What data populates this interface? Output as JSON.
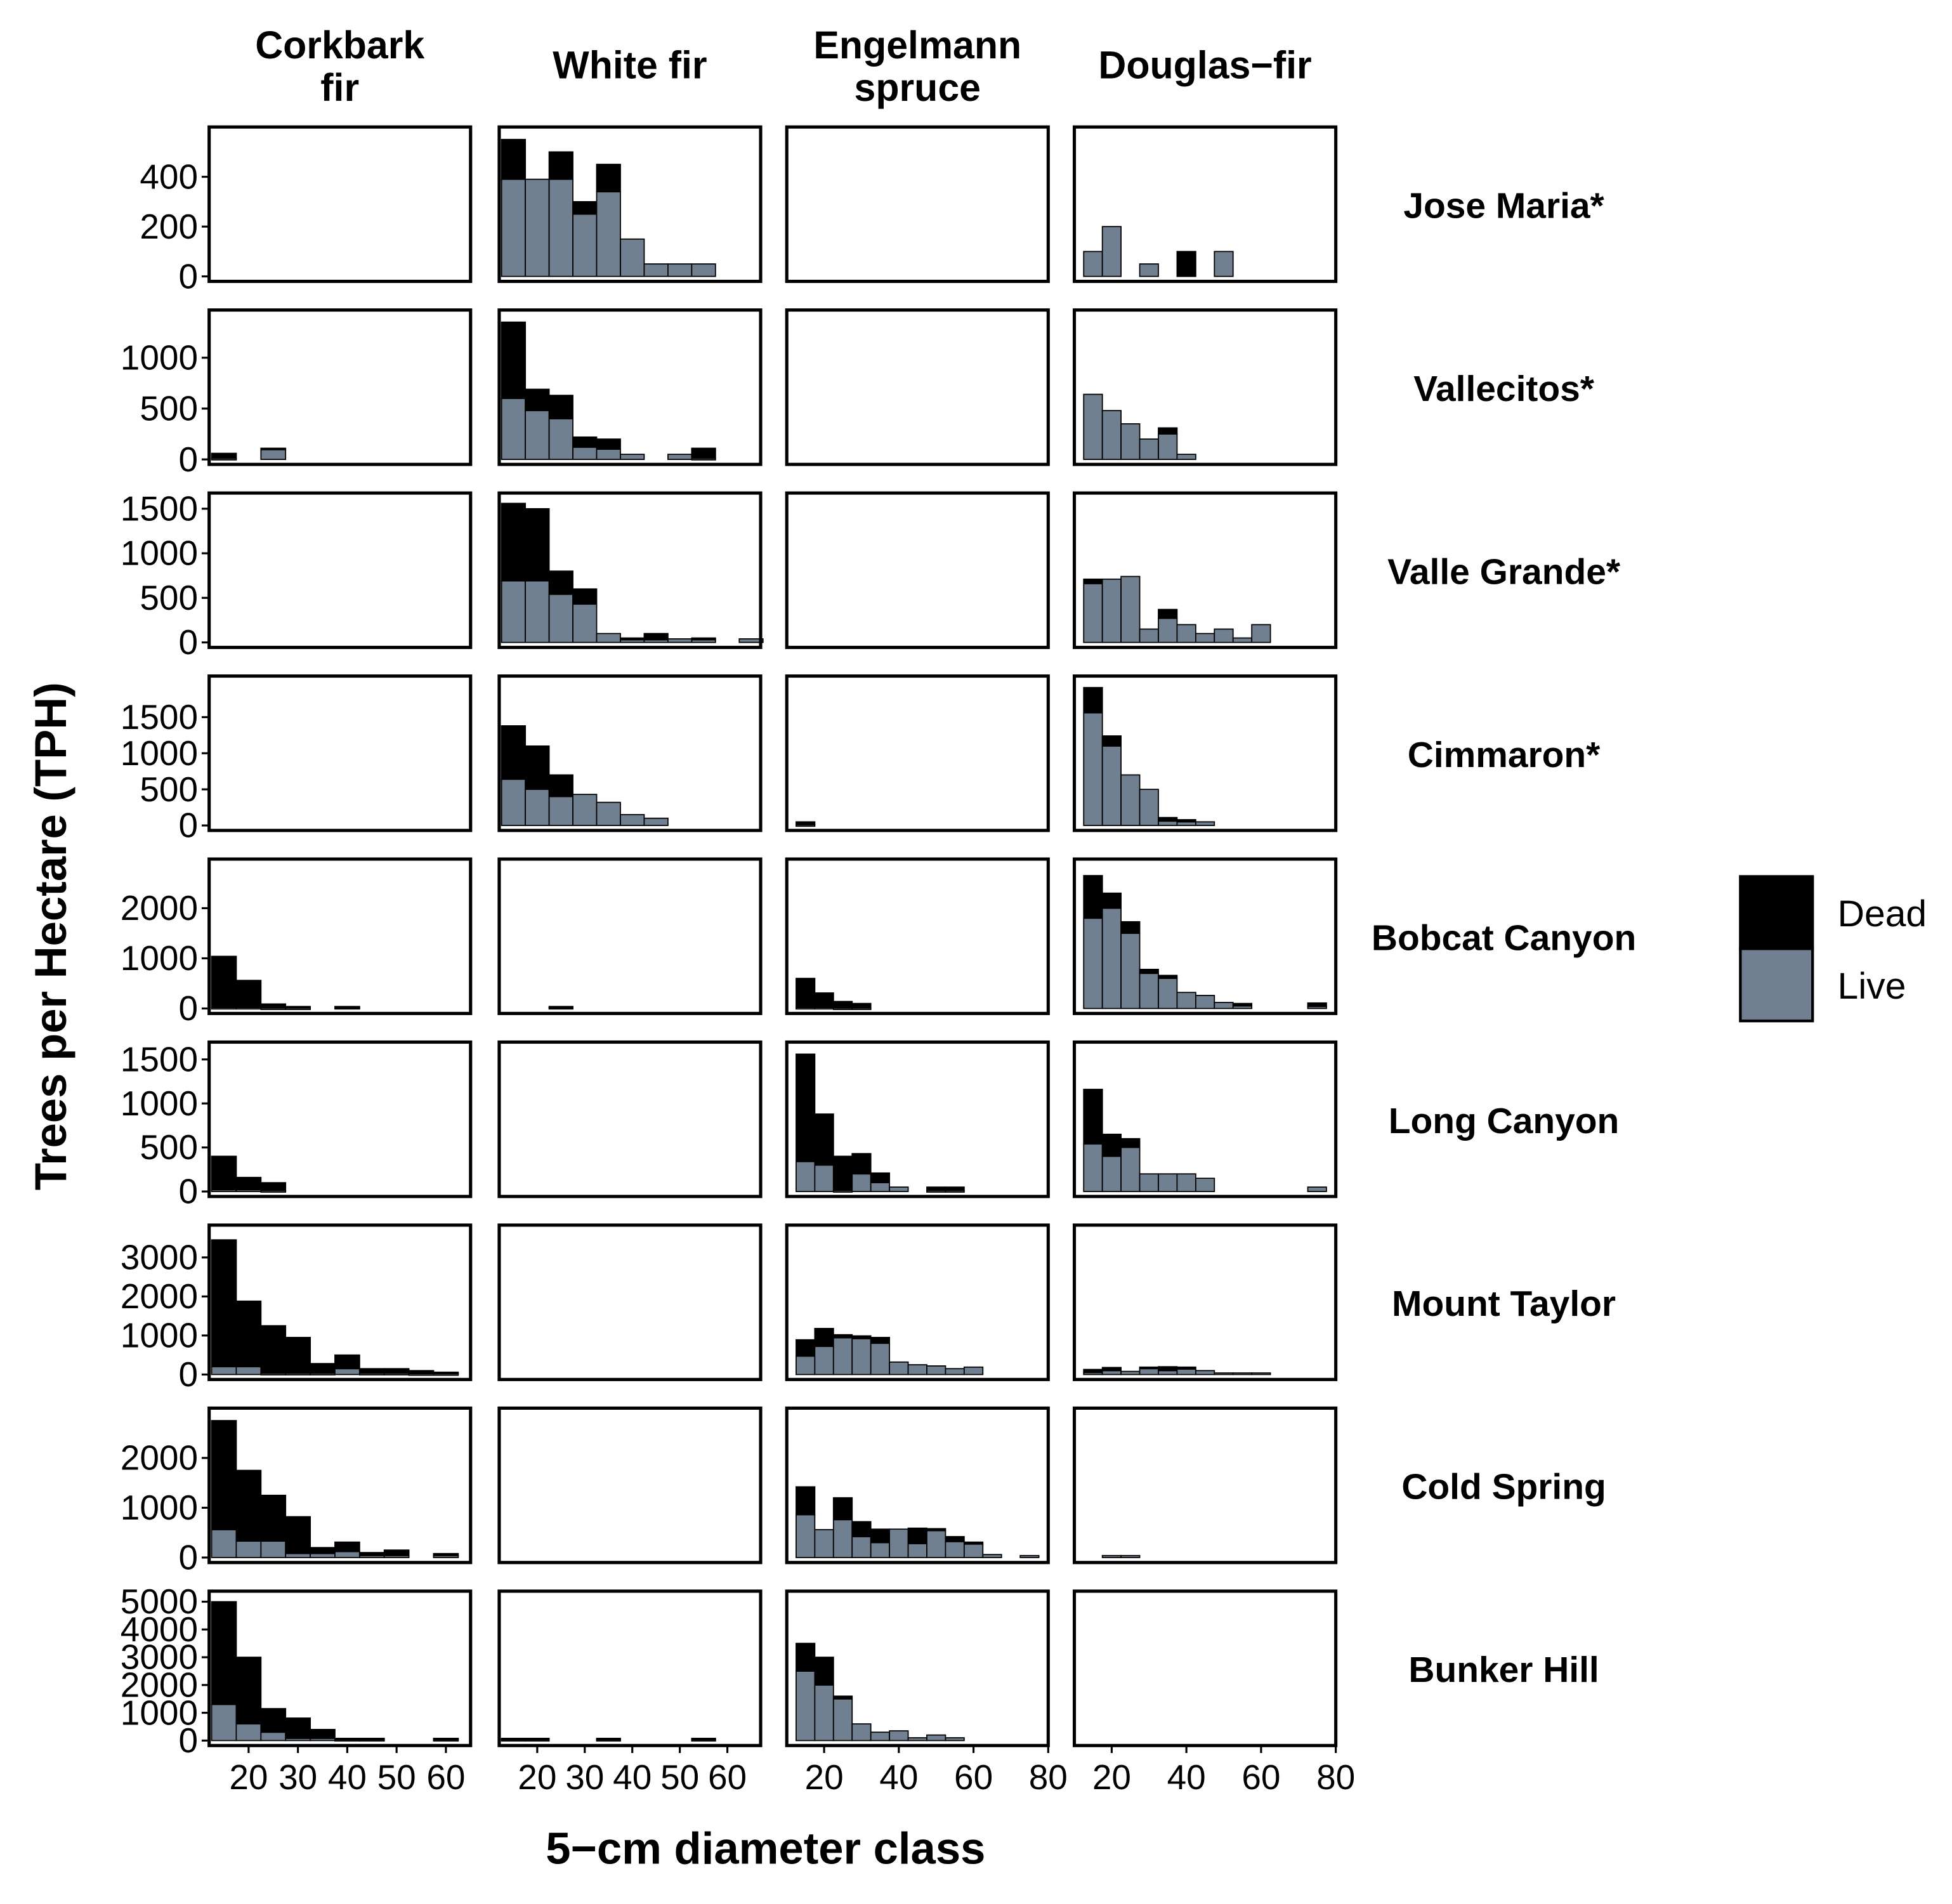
{
  "chart_data": {
    "type": "bar",
    "stacked": true,
    "xlabel": "5−cm diameter class",
    "ylabel": "Trees per Hectare (TPH)",
    "legend": {
      "position": "right",
      "entries": [
        {
          "name": "Dead",
          "color": "#000000"
        },
        {
          "name": "Live",
          "color": "#708090"
        }
      ]
    },
    "colors": {
      "dead": "#000000",
      "live": "#708090",
      "frame": "#000000"
    },
    "columns": [
      {
        "label": "Corkbark\nfir",
        "xlim": [
          12,
          65
        ],
        "xticks": [
          20,
          30,
          40,
          50,
          60
        ]
      },
      {
        "label": "White fir",
        "xlim": [
          12,
          67
        ],
        "xticks": [
          20,
          30,
          40,
          50,
          60
        ]
      },
      {
        "label": "Engelmann\nspruce",
        "xlim": [
          10,
          80
        ],
        "xticks": [
          20,
          40,
          60,
          80
        ]
      },
      {
        "label": "Douglas−fir",
        "xlim": [
          10,
          80
        ],
        "xticks": [
          20,
          40,
          60,
          80
        ]
      }
    ],
    "rows": [
      {
        "label": "Jose Maria*",
        "ylim": [
          0,
          580
        ],
        "yticks": [
          0,
          200,
          400
        ],
        "panels": [
          [],
          [
            [
              15,
              390,
              160
            ],
            [
              20,
              390,
              0
            ],
            [
              25,
              390,
              110
            ],
            [
              30,
              250,
              50
            ],
            [
              35,
              340,
              110
            ],
            [
              40,
              150,
              0
            ],
            [
              45,
              50,
              0
            ],
            [
              50,
              50,
              0
            ],
            [
              55,
              50,
              0
            ]
          ],
          [],
          [
            [
              15,
              100,
              0
            ],
            [
              20,
              200,
              0
            ],
            [
              30,
              50,
              0
            ],
            [
              40,
              0,
              100
            ],
            [
              50,
              100,
              0
            ]
          ]
        ]
      },
      {
        "label": "Vallecitos*",
        "ylim": [
          0,
          1420
        ],
        "yticks": [
          0,
          500,
          1000
        ],
        "panels": [
          [
            [
              15,
              10,
              50
            ],
            [
              25,
              100,
              10
            ]
          ],
          [
            [
              15,
              600,
              750
            ],
            [
              20,
              480,
              210
            ],
            [
              25,
              400,
              230
            ],
            [
              30,
              120,
              100
            ],
            [
              35,
              100,
              100
            ],
            [
              40,
              50,
              0
            ],
            [
              50,
              50,
              0
            ],
            [
              55,
              10,
              100
            ]
          ],
          [],
          [
            [
              15,
              640,
              0
            ],
            [
              20,
              480,
              0
            ],
            [
              25,
              350,
              0
            ],
            [
              30,
              200,
              0
            ],
            [
              35,
              250,
              60
            ],
            [
              40,
              50,
              0
            ]
          ]
        ]
      },
      {
        "label": "Valle Grande*",
        "ylim": [
          0,
          1620
        ],
        "yticks": [
          0,
          500,
          1000,
          1500
        ],
        "panels": [
          [],
          [
            [
              15,
              690,
              870
            ],
            [
              20,
              690,
              810
            ],
            [
              25,
              540,
              260
            ],
            [
              30,
              430,
              170
            ],
            [
              35,
              100,
              0
            ],
            [
              40,
              30,
              20
            ],
            [
              45,
              30,
              70
            ],
            [
              50,
              40,
              0
            ],
            [
              55,
              30,
              20
            ],
            [
              65,
              40,
              0
            ]
          ],
          [],
          [
            [
              15,
              660,
              50
            ],
            [
              20,
              710,
              0
            ],
            [
              25,
              740,
              0
            ],
            [
              30,
              150,
              0
            ],
            [
              35,
              270,
              100
            ],
            [
              40,
              200,
              0
            ],
            [
              45,
              100,
              0
            ],
            [
              50,
              150,
              0
            ],
            [
              55,
              50,
              0
            ],
            [
              60,
              200,
              0
            ]
          ]
        ]
      },
      {
        "label": "Cimmaron*",
        "ylim": [
          0,
          2000
        ],
        "yticks": [
          0,
          500,
          1000,
          1500
        ],
        "panels": [
          [],
          [
            [
              15,
              640,
              740
            ],
            [
              20,
              500,
              600
            ],
            [
              25,
              400,
              300
            ],
            [
              30,
              430,
              0
            ],
            [
              35,
              320,
              0
            ],
            [
              40,
              150,
              0
            ],
            [
              45,
              100,
              0
            ]
          ],
          [
            [
              15,
              10,
              40
            ]
          ],
          [
            [
              15,
              1560,
              350
            ],
            [
              20,
              1100,
              140
            ],
            [
              25,
              700,
              0
            ],
            [
              30,
              500,
              0
            ],
            [
              35,
              60,
              50
            ],
            [
              40,
              50,
              30
            ],
            [
              45,
              50,
              0
            ]
          ]
        ]
      },
      {
        "label": "Bobcat Canyon",
        "ylim": [
          0,
          2880
        ],
        "yticks": [
          0,
          1000,
          2000
        ],
        "panels": [
          [
            [
              15,
              20,
              1020
            ],
            [
              20,
              20,
              540
            ],
            [
              25,
              10,
              80
            ],
            [
              30,
              10,
              30
            ],
            [
              40,
              20,
              20
            ]
          ],
          [
            [
              25,
              20,
              20
            ]
          ],
          [
            [
              15,
              20,
              580
            ],
            [
              20,
              20,
              290
            ],
            [
              25,
              10,
              130
            ],
            [
              30,
              10,
              90
            ]
          ],
          [
            [
              15,
              1800,
              850
            ],
            [
              20,
              2000,
              300
            ],
            [
              25,
              1500,
              230
            ],
            [
              30,
              700,
              80
            ],
            [
              35,
              600,
              60
            ],
            [
              40,
              320,
              0
            ],
            [
              45,
              260,
              0
            ],
            [
              50,
              120,
              0
            ],
            [
              55,
              50,
              50
            ],
            [
              75,
              40,
              70
            ]
          ]
        ]
      },
      {
        "label": "Long Canyon",
        "ylim": [
          0,
          1640
        ],
        "yticks": [
          0,
          500,
          1000,
          1500
        ],
        "panels": [
          [
            [
              15,
              20,
              380
            ],
            [
              20,
              20,
              140
            ],
            [
              25,
              10,
              90
            ]
          ],
          [],
          [
            [
              15,
              340,
              1220
            ],
            [
              20,
              300,
              580
            ],
            [
              25,
              10,
              390
            ],
            [
              30,
              200,
              230
            ],
            [
              35,
              100,
              110
            ],
            [
              40,
              50,
              0
            ],
            [
              50,
              10,
              40
            ],
            [
              55,
              10,
              40
            ]
          ],
          [
            [
              15,
              540,
              620
            ],
            [
              20,
              400,
              250
            ],
            [
              25,
              500,
              100
            ],
            [
              30,
              200,
              0
            ],
            [
              35,
              200,
              0
            ],
            [
              40,
              200,
              0
            ],
            [
              45,
              150,
              0
            ],
            [
              75,
              50,
              0
            ]
          ]
        ]
      },
      {
        "label": "Mount Taylor",
        "ylim": [
          0,
          3700
        ],
        "yticks": [
          0,
          1000,
          2000,
          3000
        ],
        "panels": [
          [
            [
              15,
              200,
              3250
            ],
            [
              20,
              200,
              1680
            ],
            [
              25,
              30,
              1220
            ],
            [
              30,
              30,
              920
            ],
            [
              35,
              30,
              250
            ],
            [
              40,
              150,
              350
            ],
            [
              45,
              30,
              120
            ],
            [
              50,
              30,
              120
            ],
            [
              55,
              20,
              80
            ],
            [
              60,
              20,
              40
            ]
          ],
          [],
          [
            [
              15,
              470,
              420
            ],
            [
              20,
              720,
              460
            ],
            [
              25,
              940,
              80
            ],
            [
              30,
              920,
              70
            ],
            [
              35,
              800,
              150
            ],
            [
              40,
              320,
              0
            ],
            [
              45,
              250,
              0
            ],
            [
              50,
              220,
              0
            ],
            [
              55,
              150,
              0
            ],
            [
              60,
              190,
              0
            ]
          ],
          [
            [
              15,
              50,
              80
            ],
            [
              20,
              100,
              80
            ],
            [
              25,
              80,
              0
            ],
            [
              30,
              150,
              40
            ],
            [
              35,
              100,
              100
            ],
            [
              40,
              140,
              50
            ],
            [
              45,
              100,
              0
            ],
            [
              50,
              40,
              0
            ],
            [
              55,
              40,
              0
            ],
            [
              60,
              40,
              0
            ]
          ]
        ]
      },
      {
        "label": "Cold Spring",
        "ylim": [
          0,
          2900
        ],
        "yticks": [
          0,
          1000,
          2000
        ],
        "panels": [
          [
            [
              15,
              560,
              2190
            ],
            [
              20,
              330,
              1420
            ],
            [
              25,
              330,
              920
            ],
            [
              30,
              80,
              740
            ],
            [
              35,
              80,
              120
            ],
            [
              40,
              120,
              190
            ],
            [
              45,
              40,
              60
            ],
            [
              50,
              40,
              110
            ],
            [
              60,
              40,
              40
            ]
          ],
          [],
          [
            [
              15,
              860,
              560
            ],
            [
              20,
              560,
              0
            ],
            [
              25,
              760,
              440
            ],
            [
              30,
              420,
              300
            ],
            [
              35,
              300,
              270
            ],
            [
              40,
              570,
              0
            ],
            [
              45,
              280,
              310
            ],
            [
              50,
              540,
              40
            ],
            [
              55,
              320,
              100
            ],
            [
              60,
              270,
              40
            ],
            [
              65,
              60,
              0
            ],
            [
              75,
              40,
              0
            ]
          ],
          [
            [
              20,
              40,
              0
            ],
            [
              25,
              40,
              0
            ]
          ]
        ]
      },
      {
        "label": "Bunker Hill",
        "ylim": [
          0,
          5200
        ],
        "yticks": [
          0,
          1000,
          2000,
          3000,
          4000,
          5000
        ],
        "panels": [
          [
            [
              15,
              1300,
              3700
            ],
            [
              20,
              600,
              2400
            ],
            [
              25,
              300,
              850
            ],
            [
              30,
              80,
              730
            ],
            [
              35,
              80,
              320
            ],
            [
              40,
              40,
              40
            ],
            [
              45,
              40,
              40
            ],
            [
              60,
              40,
              40
            ]
          ],
          [
            [
              15,
              40,
              40
            ],
            [
              20,
              40,
              40
            ],
            [
              35,
              40,
              40
            ],
            [
              55,
              40,
              40
            ]
          ],
          [
            [
              15,
              2500,
              1000
            ],
            [
              20,
              2000,
              1000
            ],
            [
              25,
              1500,
              100
            ],
            [
              30,
              600,
              0
            ],
            [
              35,
              300,
              0
            ],
            [
              40,
              350,
              0
            ],
            [
              45,
              100,
              0
            ],
            [
              50,
              200,
              0
            ],
            [
              55,
              100,
              0
            ]
          ],
          []
        ]
      }
    ]
  }
}
